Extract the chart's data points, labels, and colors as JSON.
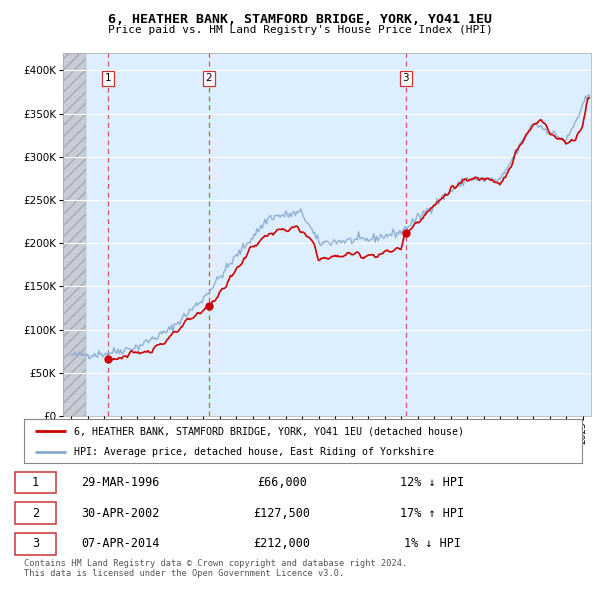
{
  "title": "6, HEATHER BANK, STAMFORD BRIDGE, YORK, YO41 1EU",
  "subtitle": "Price paid vs. HM Land Registry's House Price Index (HPI)",
  "legend_label_red": "6, HEATHER BANK, STAMFORD BRIDGE, YORK, YO41 1EU (detached house)",
  "legend_label_blue": "HPI: Average price, detached house, East Riding of Yorkshire",
  "copyright": "Contains HM Land Registry data © Crown copyright and database right 2024.\nThis data is licensed under the Open Government Licence v3.0.",
  "transactions": [
    {
      "num": 1,
      "date": "29-MAR-1996",
      "price": 66000,
      "hpi_pct": "12%",
      "hpi_dir": "↓"
    },
    {
      "num": 2,
      "date": "30-APR-2002",
      "price": 127500,
      "hpi_pct": "17%",
      "hpi_dir": "↑"
    },
    {
      "num": 3,
      "date": "07-APR-2014",
      "price": 212000,
      "hpi_pct": "1%",
      "hpi_dir": "↓"
    }
  ],
  "transaction_years": [
    1996.23,
    2002.33,
    2014.27
  ],
  "transaction_prices": [
    66000,
    127500,
    212000
  ],
  "ylim": [
    0,
    420000
  ],
  "yticks": [
    0,
    50000,
    100000,
    150000,
    200000,
    250000,
    300000,
    350000,
    400000
  ],
  "red_color": "#cc0000",
  "blue_color": "#88aacc",
  "vline_color": "#cc3333",
  "background_color": "#ddeeff",
  "hatch_bg_color": "#c8ccd8",
  "xlim": [
    1993.5,
    2025.5
  ],
  "hatch_end_year": 1994.92,
  "xtick_years": [
    1994,
    1995,
    1996,
    1997,
    1998,
    1999,
    2000,
    2001,
    2002,
    2003,
    2004,
    2005,
    2006,
    2007,
    2008,
    2009,
    2010,
    2011,
    2012,
    2013,
    2014,
    2015,
    2016,
    2017,
    2018,
    2019,
    2020,
    2021,
    2022,
    2023,
    2024,
    2025
  ]
}
